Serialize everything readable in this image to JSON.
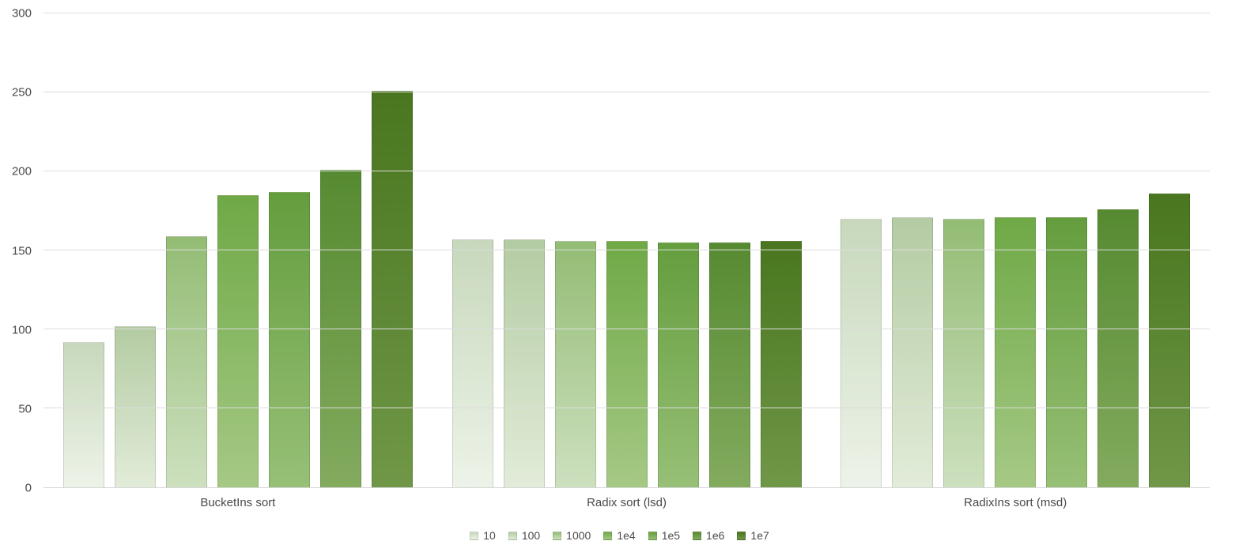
{
  "chart_data": {
    "type": "bar",
    "title": "",
    "xlabel": "",
    "ylabel": "",
    "categories": [
      "BucketIns sort",
      "Radix sort (lsd)",
      "RadixIns sort (msd)"
    ],
    "series": [
      {
        "name": "10",
        "values": [
          92,
          157,
          170
        ],
        "color_top": "#c7d8bc",
        "color_bottom": "#edf3e8"
      },
      {
        "name": "100",
        "values": [
          102,
          157,
          171
        ],
        "color_top": "#b3cba2",
        "color_bottom": "#e2ecd9"
      },
      {
        "name": "1000",
        "values": [
          159,
          156,
          170
        ],
        "color_top": "#93bc74",
        "color_bottom": "#cde0bf"
      },
      {
        "name": "1e4",
        "values": [
          185,
          156,
          171
        ],
        "color_top": "#6fa946",
        "color_bottom": "#a5c985"
      },
      {
        "name": "1e5",
        "values": [
          187,
          155,
          171
        ],
        "color_top": "#649d3e",
        "color_bottom": "#97c076"
      },
      {
        "name": "1e6",
        "values": [
          201,
          155,
          176
        ],
        "color_top": "#568a31",
        "color_bottom": "#83ab5e"
      },
      {
        "name": "1e7",
        "values": [
          251,
          156,
          186
        ],
        "color_top": "#49761f",
        "color_bottom": "#6f9747"
      }
    ],
    "ylim": [
      0,
      300
    ],
    "yticks": [
      0,
      50,
      100,
      150,
      200,
      250,
      300
    ],
    "grid": true,
    "legend_position": "bottom"
  },
  "colors": {
    "gridline": "#dcdcdc",
    "axis_line": "#d6d6d6",
    "text": "#4a4a4a",
    "background": "#ffffff"
  }
}
